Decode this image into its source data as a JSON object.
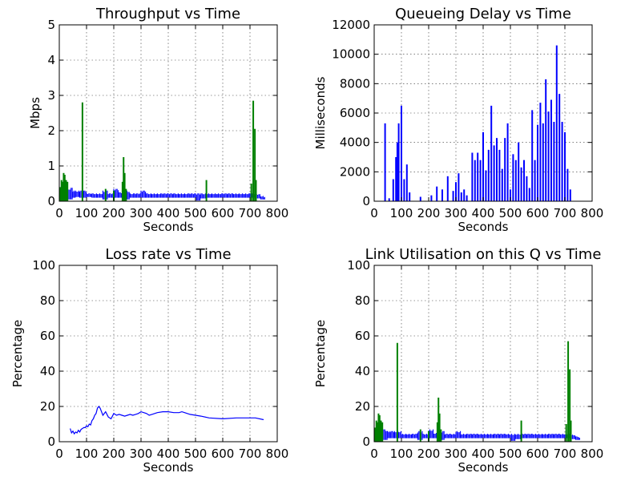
{
  "chart_data": [
    {
      "type": "line",
      "title": "Throughput vs Time",
      "xlabel": "Seconds",
      "ylabel": "Mbps",
      "xlim": [
        0,
        800
      ],
      "ylim": [
        0,
        5
      ],
      "xticks": [
        0,
        100,
        200,
        300,
        400,
        500,
        600,
        700,
        800
      ],
      "yticks": [
        0,
        1,
        2,
        3,
        4,
        5
      ],
      "grid": true,
      "series": [
        {
          "color": "#0000ff",
          "style": "band",
          "x": [
            35,
            50,
            60,
            75,
            90,
            100,
            120,
            140,
            160,
            180,
            200,
            220,
            240,
            260,
            280,
            300,
            320,
            340,
            360,
            380,
            400,
            420,
            440,
            460,
            480,
            500,
            520,
            540,
            560,
            580,
            600,
            620,
            640,
            660,
            680,
            700,
            720,
            740,
            750
          ],
          "low": [
            0.05,
            0.1,
            0.12,
            0.1,
            0.1,
            0.12,
            0.1,
            0.1,
            0.05,
            0.1,
            0.1,
            0.1,
            0.05,
            0.1,
            0.1,
            0.1,
            0.1,
            0.1,
            0.1,
            0.1,
            0.1,
            0.1,
            0.1,
            0.1,
            0.1,
            0.02,
            0.08,
            0.1,
            0.1,
            0.1,
            0.1,
            0.1,
            0.1,
            0.1,
            0.1,
            0.1,
            0.08,
            0.05,
            0.05
          ],
          "high": [
            0.38,
            0.3,
            0.3,
            0.3,
            0.3,
            0.22,
            0.22,
            0.22,
            0.3,
            0.22,
            0.35,
            0.25,
            0.3,
            0.22,
            0.22,
            0.3,
            0.22,
            0.22,
            0.22,
            0.22,
            0.22,
            0.22,
            0.22,
            0.22,
            0.22,
            0.22,
            0.22,
            0.22,
            0.22,
            0.22,
            0.22,
            0.22,
            0.22,
            0.22,
            0.22,
            0.22,
            0.2,
            0.15,
            0.12
          ]
        },
        {
          "color": "#008000",
          "style": "spikes",
          "x": [
            3,
            8,
            12,
            16,
            20,
            25,
            30,
            85,
            170,
            200,
            232,
            236,
            240,
            245,
            540,
            705,
            712,
            718,
            722
          ],
          "y": [
            0.4,
            0.6,
            0.55,
            0.8,
            0.75,
            0.6,
            0.55,
            2.8,
            0.35,
            0.3,
            0.55,
            1.25,
            0.8,
            0.35,
            0.6,
            0.5,
            2.85,
            2.05,
            0.6
          ]
        }
      ]
    },
    {
      "type": "line",
      "title": "Queueing Delay vs Time",
      "xlabel": "Seconds",
      "ylabel": "Milliseconds",
      "xlim": [
        0,
        800
      ],
      "ylim": [
        0,
        12000
      ],
      "xticks": [
        0,
        100,
        200,
        300,
        400,
        500,
        600,
        700,
        800
      ],
      "yticks": [
        0,
        2000,
        4000,
        6000,
        8000,
        10000,
        12000
      ],
      "grid": true,
      "series": [
        {
          "color": "#0000ff",
          "style": "spikes",
          "x": [
            40,
            55,
            70,
            80,
            85,
            90,
            100,
            110,
            120,
            130,
            170,
            210,
            230,
            250,
            270,
            290,
            300,
            310,
            320,
            330,
            340,
            360,
            370,
            380,
            390,
            400,
            410,
            420,
            430,
            440,
            450,
            460,
            470,
            480,
            490,
            500,
            510,
            520,
            530,
            540,
            550,
            560,
            570,
            580,
            590,
            600,
            610,
            620,
            630,
            640,
            650,
            660,
            670,
            680,
            690,
            700,
            710,
            720
          ],
          "y": [
            5300,
            200,
            1500,
            3000,
            4000,
            5300,
            6500,
            1500,
            2500,
            600,
            300,
            400,
            1000,
            800,
            1700,
            700,
            1300,
            1900,
            600,
            800,
            400,
            3300,
            2800,
            3300,
            2800,
            4700,
            2100,
            3500,
            6500,
            3800,
            4300,
            3500,
            2200,
            4300,
            5300,
            800,
            3200,
            2800,
            4000,
            2300,
            2800,
            1700,
            900,
            6200,
            2800,
            5200,
            6700,
            5300,
            8300,
            6100,
            6900,
            5400,
            10600,
            7300,
            5400,
            4700,
            2200,
            800
          ]
        }
      ]
    },
    {
      "type": "line",
      "title": "Loss rate vs Time",
      "xlabel": "Seconds",
      "ylabel": "Percentage",
      "xlim": [
        0,
        800
      ],
      "ylim": [
        0,
        100
      ],
      "xticks": [
        0,
        100,
        200,
        300,
        400,
        500,
        600,
        700,
        800
      ],
      "yticks": [
        0,
        20,
        40,
        60,
        80,
        100
      ],
      "grid": true,
      "series": [
        {
          "color": "#0000ff",
          "style": "line",
          "x": [
            40,
            45,
            50,
            55,
            60,
            65,
            70,
            75,
            80,
            85,
            90,
            95,
            100,
            105,
            110,
            115,
            120,
            125,
            130,
            135,
            140,
            145,
            150,
            160,
            170,
            180,
            190,
            200,
            210,
            220,
            230,
            240,
            250,
            260,
            270,
            280,
            290,
            300,
            310,
            320,
            330,
            340,
            360,
            380,
            400,
            420,
            440,
            450,
            460,
            480,
            500,
            520,
            550,
            600,
            650,
            700,
            720,
            750
          ],
          "y": [
            7.5,
            5,
            6,
            4.5,
            5.5,
            5,
            6.5,
            5.5,
            7,
            7.5,
            8,
            8,
            9,
            8.5,
            10,
            9.5,
            12,
            13,
            15,
            16,
            19,
            20,
            19,
            15,
            17,
            14,
            13,
            16,
            15,
            15.5,
            15,
            14.5,
            15,
            15.5,
            15,
            15.5,
            16,
            17,
            16.5,
            16,
            15,
            15.5,
            16.5,
            17,
            17,
            16.5,
            16.5,
            17,
            16.5,
            15.5,
            15,
            14.5,
            13.5,
            13,
            13.5,
            13.5,
            13.5,
            12.5
          ]
        }
      ]
    },
    {
      "type": "line",
      "title": "Link Utilisation on this Q vs Time",
      "xlabel": "Seconds",
      "ylabel": "Percentage",
      "xlim": [
        0,
        800
      ],
      "ylim": [
        0,
        100
      ],
      "xticks": [
        0,
        100,
        200,
        300,
        400,
        500,
        600,
        700,
        800
      ],
      "yticks": [
        0,
        20,
        40,
        60,
        80,
        100
      ],
      "grid": true,
      "series": [
        {
          "color": "#0000ff",
          "style": "band",
          "x": [
            35,
            50,
            60,
            75,
            90,
            100,
            120,
            140,
            160,
            180,
            200,
            220,
            240,
            260,
            280,
            300,
            320,
            340,
            360,
            380,
            400,
            420,
            440,
            460,
            480,
            500,
            520,
            540,
            560,
            580,
            600,
            620,
            640,
            660,
            680,
            700,
            720,
            740,
            750
          ],
          "low": [
            1,
            2,
            2,
            2,
            2,
            2,
            2,
            2,
            1,
            2,
            2,
            2,
            1,
            2,
            2,
            2,
            2,
            2,
            2,
            2,
            2,
            2,
            2,
            2,
            2,
            0.5,
            1.5,
            2,
            2,
            2,
            2,
            2,
            2,
            2,
            2,
            2,
            1.5,
            1,
            1
          ],
          "high": [
            7,
            6,
            6,
            6,
            6,
            4.5,
            4.5,
            4.5,
            6,
            4.5,
            7,
            5,
            6,
            4.5,
            4.5,
            6,
            4.5,
            4.5,
            4.5,
            4.5,
            4.5,
            4.5,
            4.5,
            4.5,
            4.5,
            4.5,
            4.5,
            4.5,
            4.5,
            4.5,
            4.5,
            4.5,
            4.5,
            4.5,
            4.5,
            4.5,
            4,
            3,
            2.5
          ]
        },
        {
          "color": "#008000",
          "style": "spikes",
          "x": [
            3,
            8,
            12,
            16,
            20,
            25,
            30,
            85,
            170,
            200,
            232,
            236,
            240,
            245,
            540,
            705,
            712,
            718,
            722
          ],
          "y": [
            8,
            12,
            11,
            16,
            15,
            12,
            11,
            56,
            7,
            6,
            11,
            25,
            16,
            7,
            12,
            10,
            57,
            41,
            12
          ]
        }
      ]
    }
  ]
}
